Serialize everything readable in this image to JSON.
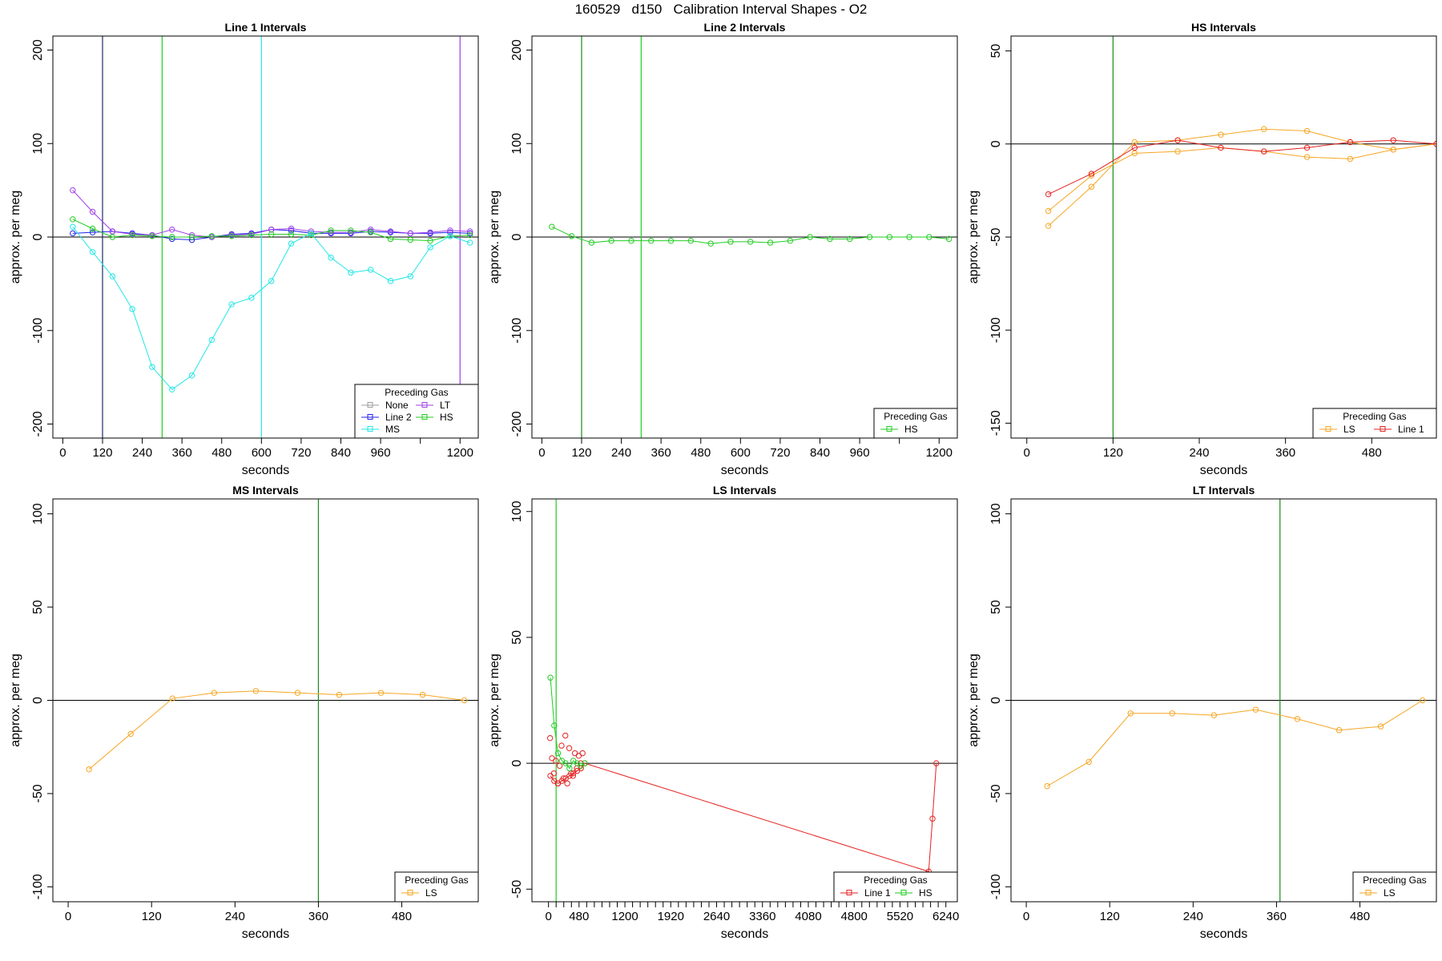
{
  "supertitle": "160529   d150   Calibration Interval Shapes - O2",
  "colors": {
    "None": "#9e9e9e",
    "Line 2": "#2222ee",
    "MS": "#22e6e6",
    "LT": "#a040e8",
    "HS": "#22cc22",
    "LS": "#f5a623",
    "Line 1": "#e52222",
    "zero_line": "#000000",
    "axis": "#000000",
    "legend_frame": "#000000"
  },
  "chart_data": [
    {
      "type": "line",
      "title": "Line 1 Intervals",
      "xlabel": "seconds",
      "ylabel": "approx. per meg",
      "xlim": [
        -30,
        1255
      ],
      "ylim": [
        -215,
        215
      ],
      "xticks": [
        0,
        120,
        240,
        360,
        480,
        600,
        720,
        840,
        960,
        1080,
        1200
      ],
      "xticklabels": [
        "0",
        "120",
        "240",
        "360",
        "480",
        "600",
        "720",
        "840",
        "960",
        "",
        "1200"
      ],
      "yticks": [
        -200,
        -100,
        0,
        100,
        200
      ],
      "yticklabels": [
        "-200",
        "-100",
        "0",
        "100",
        "200"
      ],
      "vlines": [
        {
          "x": 120,
          "color": "#1a2c6e"
        },
        {
          "x": 300,
          "color": "#22cc22"
        },
        {
          "x": 600,
          "color": "#22e6e6"
        },
        {
          "x": 1200,
          "color": "#a040e8"
        }
      ],
      "series": [
        {
          "name": "Line 2",
          "x": [
            30,
            90,
            150,
            210,
            270,
            330,
            390,
            450,
            510,
            570,
            630,
            690,
            750,
            810,
            870,
            930,
            990,
            1050,
            1110,
            1170,
            1230
          ],
          "y": [
            4,
            5,
            6,
            4,
            2,
            -2,
            -3,
            0,
            3,
            4,
            8,
            7,
            4,
            4,
            4,
            6,
            5,
            4,
            4,
            5,
            4
          ]
        },
        {
          "name": "LT",
          "x": [
            30,
            90,
            150,
            210,
            270,
            330,
            390,
            450,
            510,
            570,
            630,
            690,
            750,
            810,
            870,
            930,
            990,
            1050,
            1110,
            1170,
            1230
          ],
          "y": [
            50,
            27,
            6,
            3,
            2,
            8,
            2,
            0,
            2,
            3,
            8,
            9,
            6,
            5,
            5,
            8,
            6,
            4,
            5,
            7,
            6
          ]
        },
        {
          "name": "HS",
          "x": [
            30,
            90,
            150,
            210,
            270,
            330,
            390,
            450,
            510,
            570,
            630,
            690,
            750,
            810,
            870,
            930,
            990,
            1050,
            1110,
            1170,
            1230
          ],
          "y": [
            19,
            9,
            0,
            2,
            1,
            0,
            0,
            1,
            1,
            2,
            3,
            3,
            2,
            7,
            7,
            5,
            -2,
            -3,
            -4,
            1,
            2
          ]
        },
        {
          "name": "MS",
          "x": [
            30,
            90,
            150,
            210,
            270,
            330,
            390,
            450,
            510,
            570,
            630,
            690,
            750,
            810,
            870,
            930,
            990,
            1050,
            1110,
            1170,
            1230
          ],
          "y": [
            11,
            -16,
            -42,
            -77,
            -139,
            -163,
            -148,
            -110,
            -72,
            -65,
            -47,
            -7,
            4,
            -22,
            -38,
            -35,
            -47,
            -42,
            -11,
            1,
            -6
          ]
        }
      ],
      "legend": {
        "title": "Preceding Gas",
        "position": "bottom-right",
        "columns": 2,
        "entries": [
          "None",
          "LT",
          "Line 2",
          "HS",
          "MS"
        ]
      }
    },
    {
      "type": "line",
      "title": "Line 2 Intervals",
      "xlabel": "seconds",
      "ylabel": "approx. per meg",
      "xlim": [
        -30,
        1255
      ],
      "ylim": [
        -215,
        215
      ],
      "xticks": [
        0,
        120,
        240,
        360,
        480,
        600,
        720,
        840,
        960,
        1080,
        1200
      ],
      "xticklabels": [
        "0",
        "120",
        "240",
        "360",
        "480",
        "600",
        "720",
        "840",
        "960",
        "",
        "1200"
      ],
      "yticks": [
        -200,
        -100,
        0,
        100,
        200
      ],
      "yticklabels": [
        "-200",
        "-100",
        "0",
        "100",
        "200"
      ],
      "vlines": [
        {
          "x": 120,
          "color": "#1a8a1a"
        },
        {
          "x": 300,
          "color": "#22cc22"
        }
      ],
      "series": [
        {
          "name": "HS",
          "x": [
            30,
            90,
            150,
            210,
            270,
            330,
            390,
            450,
            510,
            570,
            630,
            690,
            750,
            810,
            870,
            930,
            990,
            1050,
            1110,
            1170,
            1230
          ],
          "y": [
            11,
            1,
            -6,
            -4,
            -4,
            -4,
            -4,
            -4,
            -7,
            -5,
            -5,
            -6,
            -4,
            0,
            -2,
            -2,
            0,
            0,
            0,
            0,
            -2
          ]
        }
      ],
      "legend": {
        "title": "Preceding Gas",
        "position": "bottom-right",
        "columns": 1,
        "entries": [
          "HS"
        ]
      }
    },
    {
      "type": "line",
      "title": "HS Intervals",
      "xlabel": "seconds",
      "ylabel": "approx. per meg",
      "xlim": [
        -22,
        570
      ],
      "ylim": [
        -158,
        58
      ],
      "xticks": [
        0,
        120,
        240,
        360,
        480
      ],
      "xticklabels": [
        "0",
        "120",
        "240",
        "360",
        "480"
      ],
      "yticks": [
        -150,
        -100,
        -50,
        0,
        50
      ],
      "yticklabels": [
        "-150",
        "-100",
        "-50",
        "0",
        "50"
      ],
      "vlines": [
        {
          "x": 120,
          "color": "#1a8a1a"
        }
      ],
      "series": [
        {
          "name": "LS",
          "x": [
            30,
            90,
            150,
            210,
            270,
            330,
            390,
            450,
            510,
            570
          ],
          "y": [
            -44,
            -23,
            1,
            2,
            5,
            8,
            7,
            1,
            -3,
            0
          ]
        },
        {
          "name": "LS",
          "x": [
            30,
            90,
            150,
            210,
            270,
            330,
            390,
            450,
            510,
            570
          ],
          "y": [
            -36,
            -17,
            -5,
            -4,
            -2,
            -4,
            -7,
            -8,
            -3,
            0
          ]
        },
        {
          "name": "Line 1",
          "x": [
            30,
            90,
            150,
            210,
            270,
            330,
            390,
            450,
            510,
            570
          ],
          "y": [
            -27,
            -16,
            -2,
            2,
            -2,
            -4,
            -2,
            1,
            2,
            0
          ]
        }
      ],
      "legend": {
        "title": "Preceding Gas",
        "position": "bottom-right",
        "columns": 2,
        "entries": [
          "LS",
          "Line 1"
        ]
      }
    },
    {
      "type": "line",
      "title": "MS Intervals",
      "xlabel": "seconds",
      "ylabel": "approx. per meg",
      "xlim": [
        -22,
        590
      ],
      "ylim": [
        -108,
        108
      ],
      "xticks": [
        0,
        120,
        240,
        360,
        480
      ],
      "xticklabels": [
        "0",
        "120",
        "240",
        "360",
        "480"
      ],
      "yticks": [
        -100,
        -50,
        0,
        50,
        100
      ],
      "yticklabels": [
        "-100",
        "-50",
        "0",
        "50",
        "100"
      ],
      "vlines": [
        {
          "x": 360,
          "color": "#1a8a1a"
        }
      ],
      "series": [
        {
          "name": "LS",
          "x": [
            30,
            90,
            150,
            210,
            270,
            330,
            390,
            450,
            510,
            570
          ],
          "y": [
            -37,
            -18,
            1,
            4,
            5,
            4,
            3,
            4,
            3,
            0
          ]
        }
      ],
      "legend": {
        "title": "Preceding Gas",
        "position": "bottom-right",
        "columns": 1,
        "entries": [
          "LS"
        ]
      }
    },
    {
      "type": "line",
      "title": "LS Intervals",
      "xlabel": "seconds",
      "ylabel": "approx. per meg",
      "xlim": [
        -260,
        6420
      ],
      "ylim": [
        -55,
        105
      ],
      "xticks": [
        0,
        480,
        1200,
        1920,
        2640,
        3360,
        4080,
        4800,
        5520,
        6240
      ],
      "xticklabels": [
        "0",
        "480",
        "1200",
        "1920",
        "2640",
        "3360",
        "4080",
        "4800",
        "5520",
        "6240"
      ],
      "minor_xticks": [
        120,
        240,
        360,
        600,
        720,
        840,
        960,
        1080,
        1320,
        1440,
        1560,
        1680,
        1800,
        2040,
        2160,
        2280,
        2400,
        2520,
        2760,
        2880,
        3000,
        3120,
        3240,
        3480,
        3600,
        3720,
        3840,
        3960,
        4200,
        4320,
        4440,
        4560,
        4680,
        4920,
        5040,
        5160,
        5280,
        5400,
        5640,
        5760,
        5880,
        6000,
        6120
      ],
      "yticks": [
        -50,
        0,
        50,
        100
      ],
      "yticklabels": [
        "-50",
        "0",
        "50",
        "100"
      ],
      "vlines": [
        {
          "x": 120,
          "color": "#22cc22"
        }
      ],
      "series": [
        {
          "name": "Line 1",
          "mode": "lines+markers",
          "x": [
            30,
            90,
            150,
            210,
            270,
            330,
            390,
            450,
            510,
            570,
            5970,
            6030,
            6090
          ],
          "y": [
            -5,
            -7,
            -8,
            -7,
            -6,
            -5,
            -4,
            -3,
            -2,
            0,
            -43,
            -22,
            0
          ]
        },
        {
          "name": "Line 1",
          "mode": "markers",
          "x": [
            25,
            55,
            85,
            115,
            145,
            175,
            205,
            235,
            265,
            295,
            325,
            355,
            385,
            415,
            445,
            475,
            505,
            535
          ],
          "y": [
            10,
            2,
            -4,
            1,
            -8,
            -1,
            7,
            -6,
            11,
            -8,
            6,
            -4,
            -5,
            4,
            -2,
            3,
            0,
            4
          ]
        },
        {
          "name": "HS",
          "x": [
            30,
            90,
            150,
            210,
            270,
            330,
            390,
            450,
            510,
            570
          ],
          "y": [
            34,
            15,
            4,
            1,
            0,
            -2,
            1,
            0,
            -1,
            0
          ]
        }
      ],
      "legend": {
        "title": "Preceding Gas",
        "position": "bottom-right",
        "columns": 2,
        "entries": [
          "Line 1",
          "HS"
        ]
      }
    },
    {
      "type": "line",
      "title": "LT Intervals",
      "xlabel": "seconds",
      "ylabel": "approx. per meg",
      "xlim": [
        -22,
        590
      ],
      "ylim": [
        -108,
        108
      ],
      "xticks": [
        0,
        120,
        240,
        360,
        480
      ],
      "xticklabels": [
        "0",
        "120",
        "240",
        "360",
        "480"
      ],
      "yticks": [
        -100,
        -50,
        0,
        50,
        100
      ],
      "yticklabels": [
        "-100",
        "-50",
        "0",
        "50",
        "100"
      ],
      "vlines": [
        {
          "x": 365,
          "color": "#1a8a1a"
        }
      ],
      "series": [
        {
          "name": "LS",
          "x": [
            30,
            90,
            150,
            210,
            270,
            330,
            390,
            450,
            510,
            570
          ],
          "y": [
            -46,
            -33,
            -7,
            -7,
            -8,
            -5,
            -10,
            -16,
            -14,
            0
          ]
        }
      ],
      "legend": {
        "title": "Preceding Gas",
        "position": "bottom-right",
        "columns": 1,
        "entries": [
          "LS"
        ]
      }
    }
  ]
}
